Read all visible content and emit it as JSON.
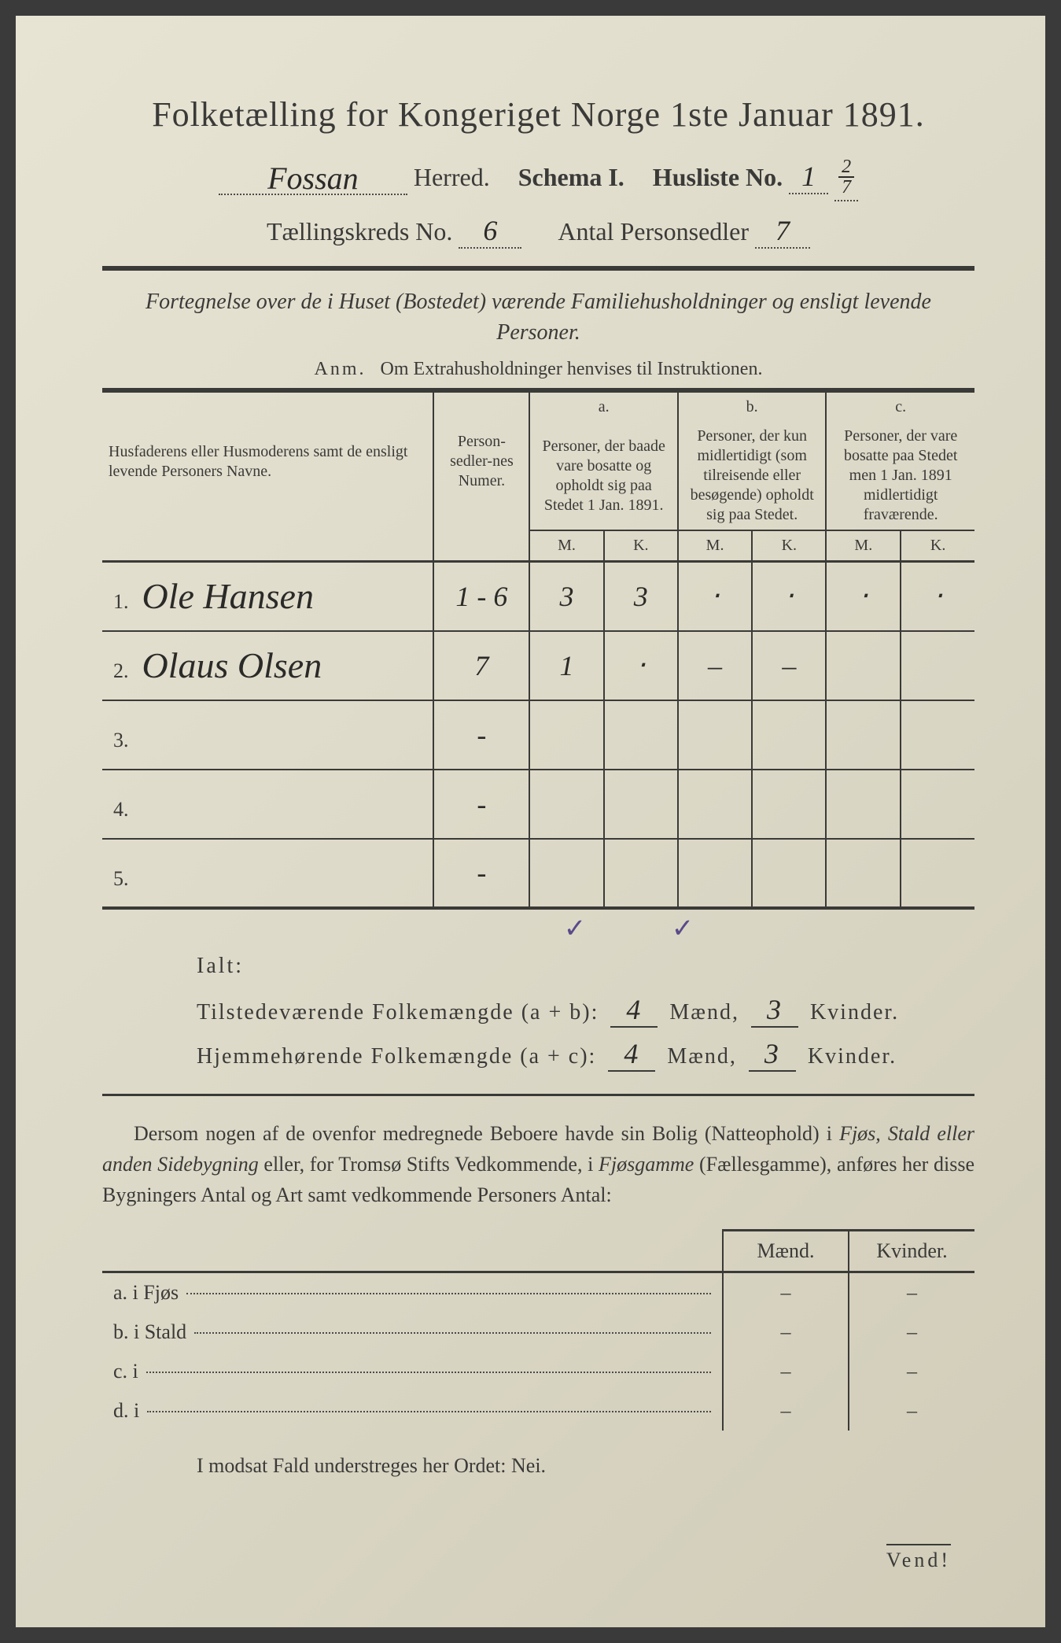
{
  "title": "Folketælling for Kongeriget Norge 1ste Januar 1891.",
  "header": {
    "herred_value": "Fossan",
    "herred_label": "Herred.",
    "schema_label": "Schema I.",
    "husliste_label": "Husliste No.",
    "husliste_no": "1",
    "husliste_frac_top": "2",
    "husliste_frac_bot": "7",
    "kreds_label": "Tællingskreds No.",
    "kreds_no": "6",
    "antal_label": "Antal Personsedler",
    "antal_val": "7"
  },
  "subtitle": "Fortegnelse over de i Huset (Bostedet) værende Familiehusholdninger og ensligt levende Personer.",
  "anm_label": "Anm.",
  "anm_text": "Om Extrahusholdninger henvises til Instruktionen.",
  "table": {
    "col_name": "Husfaderens eller Husmoderens samt de ensligt levende Personers Navne.",
    "col_num": "Person-sedler-nes Numer.",
    "col_a_top": "a.",
    "col_a": "Personer, der baade vare bosatte og opholdt sig paa Stedet 1 Jan. 1891.",
    "col_b_top": "b.",
    "col_b": "Personer, der kun midlertidigt (som tilreisende eller besøgende) opholdt sig paa Stedet.",
    "col_c_top": "c.",
    "col_c": "Personer, der vare bosatte paa Stedet men 1 Jan. 1891 midlertidigt fraværende.",
    "m": "M.",
    "k": "K.",
    "rows": [
      {
        "n": "1.",
        "name": "Ole Hansen",
        "num": "1 - 6",
        "am": "3",
        "ak": "3",
        "bm": "‧",
        "bk": "‧",
        "cm": "‧",
        "ck": "‧"
      },
      {
        "n": "2.",
        "name": "Olaus Olsen",
        "num": "7",
        "am": "1",
        "ak": "‧",
        "bm": "–",
        "bk": "–",
        "cm": "",
        "ck": ""
      },
      {
        "n": "3.",
        "name": "",
        "num": "-",
        "am": "",
        "ak": "",
        "bm": "",
        "bk": "",
        "cm": "",
        "ck": ""
      },
      {
        "n": "4.",
        "name": "",
        "num": "-",
        "am": "",
        "ak": "",
        "bm": "",
        "bk": "",
        "cm": "",
        "ck": ""
      },
      {
        "n": "5.",
        "name": "",
        "num": "-",
        "am": "",
        "ak": "",
        "bm": "",
        "bk": "",
        "cm": "",
        "ck": ""
      }
    ]
  },
  "ialt": {
    "title": "Ialt:",
    "line1_label": "Tilstedeværende Folkemængde (a + b):",
    "line2_label": "Hjemmehørende Folkemængde (a + c):",
    "maend": "Mænd,",
    "kvinder": "Kvinder.",
    "l1m": "4",
    "l1k": "3",
    "l2m": "4",
    "l2k": "3"
  },
  "para": "Dersom nogen af de ovenfor medregnede Beboere havde sin Bolig (Natteophold) i Fjøs, Stald eller anden Sidebygning eller, for Tromsø Stifts Vedkommende, i Fjøsgamme (Fællesgamme), anføres her disse Bygningers Antal og Art samt vedkommende Personers Antal:",
  "lower": {
    "h_maend": "Mænd.",
    "h_kvinder": "Kvinder.",
    "rows": [
      {
        "lead": "a.  i      Fjøs",
        "m": "–",
        "k": "–"
      },
      {
        "lead": "b.  i      Stald",
        "m": "–",
        "k": "–"
      },
      {
        "lead": "c.  i",
        "m": "–",
        "k": "–"
      },
      {
        "lead": "d.  i",
        "m": "–",
        "k": "–"
      }
    ]
  },
  "nei": "I modsat Fald understreges her Ordet: Nei.",
  "vend": "Vend!"
}
